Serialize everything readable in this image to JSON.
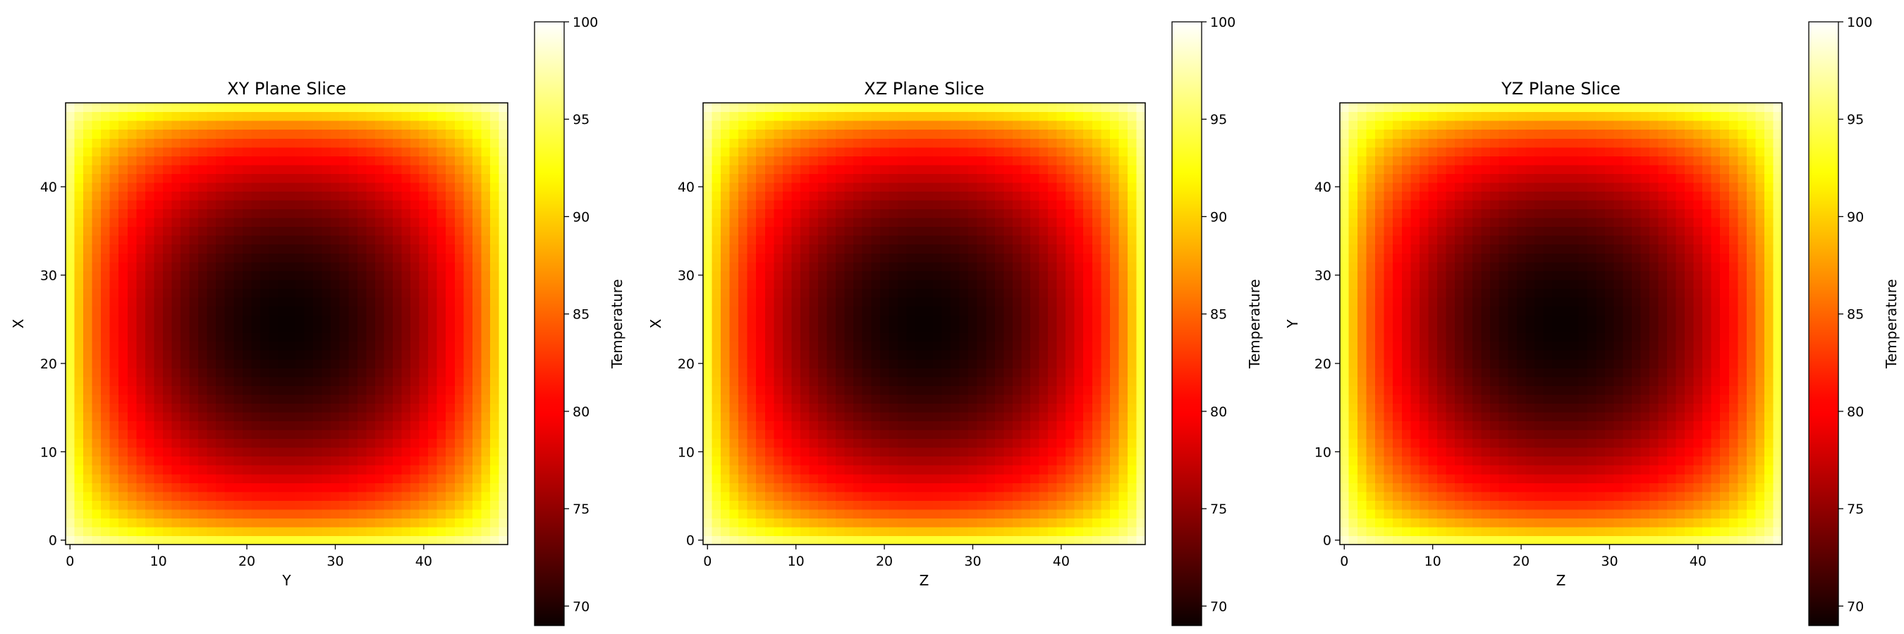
{
  "chart_data": [
    {
      "type": "heatmap",
      "title": "XY Plane Slice",
      "xlabel": "Y",
      "ylabel": "X",
      "xlim": [
        -0.5,
        49.5
      ],
      "ylim": [
        -0.5,
        49.5
      ],
      "xticks": [
        0,
        10,
        20,
        30,
        40
      ],
      "yticks": [
        0,
        10,
        20,
        30,
        40
      ],
      "grid": false,
      "grid_size": [
        50,
        50
      ],
      "value_model": {
        "boundary": 100,
        "min": 69,
        "max": 100,
        "center": [
          24.5,
          24.5
        ]
      },
      "colormap": "hot",
      "colorbar": {
        "label": "Temperature",
        "ticks": [
          70,
          75,
          80,
          85,
          90,
          95,
          100
        ],
        "range": [
          69,
          100
        ]
      }
    },
    {
      "type": "heatmap",
      "title": "XZ Plane Slice",
      "xlabel": "Z",
      "ylabel": "X",
      "xlim": [
        -0.5,
        49.5
      ],
      "ylim": [
        -0.5,
        49.5
      ],
      "xticks": [
        0,
        10,
        20,
        30,
        40
      ],
      "yticks": [
        0,
        10,
        20,
        30,
        40
      ],
      "grid": false,
      "grid_size": [
        50,
        50
      ],
      "value_model": {
        "boundary": 100,
        "min": 69,
        "max": 100,
        "center": [
          24.5,
          24.5
        ]
      },
      "colormap": "hot",
      "colorbar": {
        "label": "Temperature",
        "ticks": [
          70,
          75,
          80,
          85,
          90,
          95,
          100
        ],
        "range": [
          69,
          100
        ]
      }
    },
    {
      "type": "heatmap",
      "title": "YZ Plane Slice",
      "xlabel": "Z",
      "ylabel": "Y",
      "xlim": [
        -0.5,
        49.5
      ],
      "ylim": [
        -0.5,
        49.5
      ],
      "xticks": [
        0,
        10,
        20,
        30,
        40
      ],
      "yticks": [
        0,
        10,
        20,
        30,
        40
      ],
      "grid": false,
      "grid_size": [
        50,
        50
      ],
      "value_model": {
        "boundary": 100,
        "min": 69,
        "max": 100,
        "center": [
          24.5,
          24.5
        ]
      },
      "colormap": "hot",
      "colorbar": {
        "label": "Temperature",
        "ticks": [
          70,
          75,
          80,
          85,
          90,
          95,
          100
        ],
        "range": [
          69,
          100
        ]
      }
    }
  ],
  "colors": {
    "background": "#ffffff",
    "axes": "#000000",
    "colormap_stops": [
      "#0b0000",
      "#ff0000",
      "#ffff00",
      "#ffffff"
    ]
  }
}
